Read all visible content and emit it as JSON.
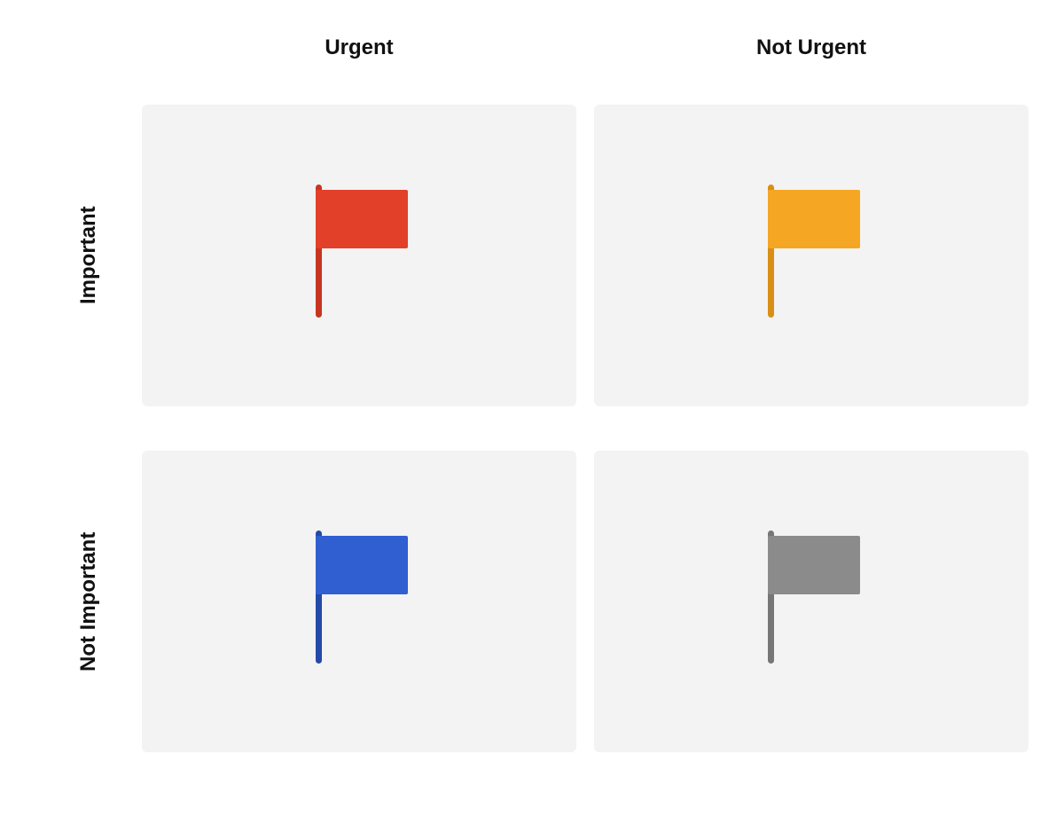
{
  "diagram": {
    "type": "matrix-2x2",
    "background_color": "#ffffff",
    "cell_background": "#f3f3f3",
    "label_color": "#111111",
    "label_fontsize": 24,
    "label_fontweight": 700,
    "columns": [
      {
        "label": "Urgent"
      },
      {
        "label": "Not Urgent"
      }
    ],
    "rows": [
      {
        "label": "Important"
      },
      {
        "label": "Not Important"
      }
    ],
    "cells": [
      {
        "row": 0,
        "col": 0,
        "flag_color": "#e3402a",
        "pole_color": "#c73521"
      },
      {
        "row": 0,
        "col": 1,
        "flag_color": "#f5a623",
        "pole_color": "#d98f15"
      },
      {
        "row": 1,
        "col": 0,
        "flag_color": "#2f5fd0",
        "pole_color": "#2449a8"
      },
      {
        "row": 1,
        "col": 1,
        "flag_color": "#8b8b8b",
        "pole_color": "#767676"
      }
    ],
    "flag": {
      "rect_width": 104,
      "rect_height": 66,
      "pole_width": 7,
      "pole_height": 150
    }
  }
}
